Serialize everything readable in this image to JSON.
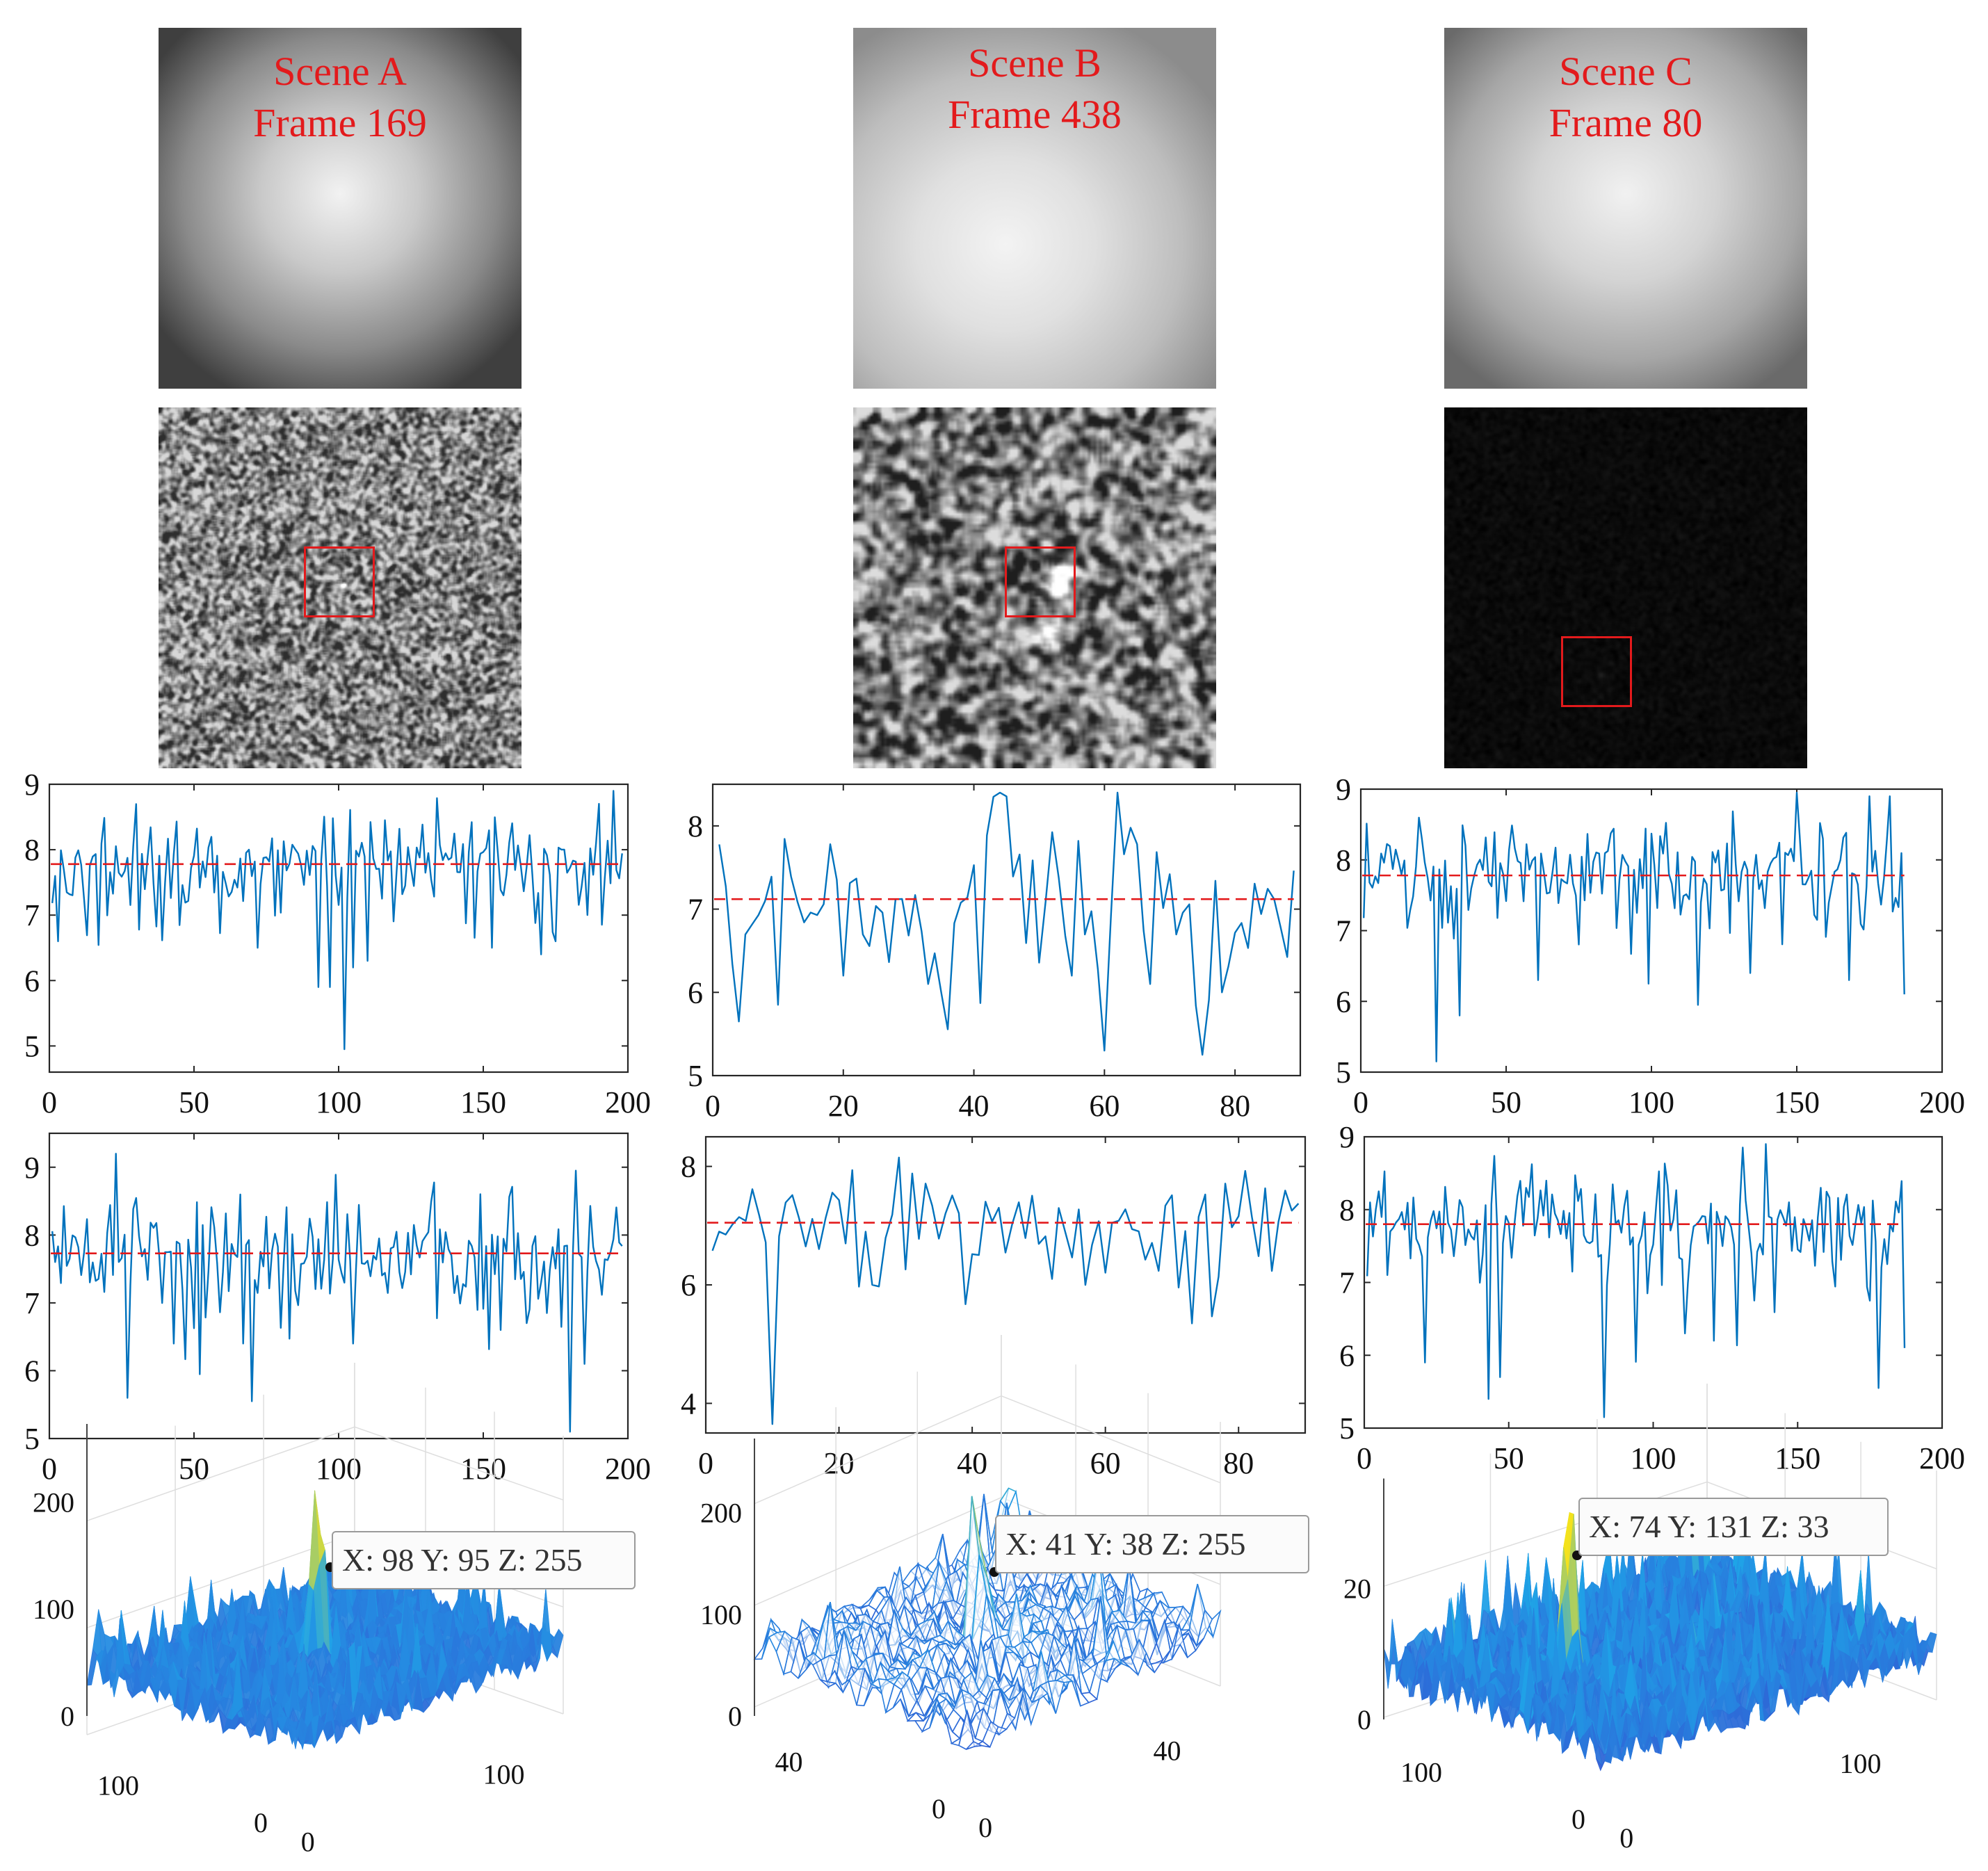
{
  "scenes": [
    {
      "id": "A",
      "title_line1": "Scene A",
      "title_line2": "Frame 169"
    },
    {
      "id": "B",
      "title_line1": "Scene B",
      "title_line2": "Frame 438"
    },
    {
      "id": "C",
      "title_line1": "Scene C",
      "title_line2": "Frame 80"
    }
  ],
  "colors": {
    "line": "#0072bd",
    "threshold": "#e31a1c",
    "title": "#e31a1c",
    "box": "#e31a1c",
    "surface_low": "#3b2fc7",
    "surface_mid": "#1fa5e8",
    "surface_high": "#f5e31b"
  },
  "chart_data": [
    {
      "id": "row1-A",
      "type": "line",
      "title": "",
      "xlabel": "",
      "ylabel": "",
      "xlim": [
        0,
        200
      ],
      "ylim": [
        4.6,
        9
      ],
      "xticks": [
        "0",
        "50",
        "100",
        "150",
        "200"
      ],
      "xtick_values": [
        0,
        50,
        100,
        150,
        200
      ],
      "yticks": [
        "5",
        "6",
        "7",
        "8",
        "9"
      ],
      "ytick_values": [
        5,
        6,
        7,
        8,
        9
      ],
      "n_points": 198,
      "mean": 7.8,
      "std": 0.45,
      "threshold": 7.78,
      "dips": [
        [
          2,
          6.6
        ],
        [
          71,
          6.5
        ],
        [
          92,
          5.9
        ],
        [
          96,
          5.9
        ],
        [
          101,
          4.95
        ],
        [
          104,
          6.2
        ],
        [
          109,
          6.3
        ],
        [
          152,
          6.5
        ],
        [
          174,
          6.6
        ]
      ]
    },
    {
      "id": "row1-B",
      "type": "line",
      "title": "",
      "xlabel": "",
      "ylabel": "",
      "xlim": [
        0,
        90
      ],
      "ylim": [
        5,
        8.5
      ],
      "xticks": [
        "0",
        "20",
        "40",
        "60",
        "80"
      ],
      "xtick_values": [
        0,
        20,
        40,
        60,
        80
      ],
      "yticks": [
        "5",
        "6",
        "7",
        "8"
      ],
      "ytick_values": [
        5,
        6,
        7,
        8
      ],
      "n_points": 89,
      "mean": 7.1,
      "std": 0.55,
      "threshold": 7.12,
      "dips": [
        [
          3,
          5.65
        ],
        [
          9,
          5.85
        ],
        [
          19,
          6.2
        ],
        [
          32,
          6.1
        ],
        [
          34,
          6.0
        ],
        [
          54,
          6.2
        ],
        [
          59,
          5.3
        ],
        [
          66,
          6.1
        ],
        [
          74,
          5.25
        ],
        [
          77,
          6.0
        ]
      ],
      "peaks": [
        [
          42,
          8.35
        ],
        [
          43,
          8.4
        ]
      ]
    },
    {
      "id": "row1-C",
      "type": "line",
      "title": "",
      "xlabel": "",
      "ylabel": "",
      "xlim": [
        0,
        200
      ],
      "ylim": [
        5,
        9
      ],
      "xticks": [
        "0",
        "50",
        "100",
        "150",
        "200"
      ],
      "xtick_values": [
        0,
        50,
        100,
        150,
        200
      ],
      "yticks": [
        "5",
        "6",
        "7",
        "8",
        "9"
      ],
      "ytick_values": [
        5,
        6,
        7,
        8,
        9
      ],
      "n_points": 187,
      "mean": 7.8,
      "std": 0.45,
      "threshold": 7.78,
      "dips": [
        [
          25,
          5.15
        ],
        [
          33,
          5.8
        ],
        [
          60,
          6.3
        ],
        [
          98,
          6.25
        ],
        [
          115,
          5.95
        ],
        [
          133,
          6.4
        ],
        [
          167,
          6.3
        ],
        [
          186,
          6.1
        ]
      ],
      "peaks": [
        [
          149,
          8.95
        ]
      ]
    },
    {
      "id": "row2-A",
      "type": "line",
      "title": "",
      "xlabel": "",
      "ylabel": "",
      "xlim": [
        0,
        200
      ],
      "ylim": [
        5,
        9.5
      ],
      "xticks": [
        "0",
        "50",
        "100",
        "150",
        "200"
      ],
      "xtick_values": [
        0,
        50,
        100,
        150,
        200
      ],
      "yticks": [
        "5",
        "6",
        "7",
        "8",
        "9"
      ],
      "ytick_values": [
        5,
        6,
        7,
        8,
        9
      ],
      "n_points": 198,
      "mean": 7.75,
      "std": 0.5,
      "threshold": 7.73,
      "dips": [
        [
          26,
          5.6
        ],
        [
          42,
          6.4
        ],
        [
          66,
          6.4
        ],
        [
          104,
          6.4
        ],
        [
          155,
          6.6
        ],
        [
          179,
          5.1
        ],
        [
          184,
          6.1
        ]
      ],
      "peaks": [
        [
          22,
          9.2
        ],
        [
          181,
          8.95
        ]
      ]
    },
    {
      "id": "row2-B",
      "type": "line",
      "title": "",
      "xlabel": "",
      "ylabel": "",
      "xlim": [
        0,
        90
      ],
      "ylim": [
        3.5,
        8.5
      ],
      "xticks": [
        "0",
        "20",
        "40",
        "60",
        "80"
      ],
      "xtick_values": [
        0,
        20,
        40,
        60,
        80
      ],
      "yticks": [
        "4",
        "6",
        "8"
      ],
      "ytick_values": [
        4,
        6,
        8
      ],
      "n_points": 89,
      "mean": 7.0,
      "std": 0.45,
      "threshold": 7.05,
      "dips": [
        [
          9,
          3.65
        ],
        [
          24,
          6.0
        ],
        [
          51,
          6.1
        ],
        [
          56,
          6.0
        ],
        [
          72,
          5.35
        ]
      ],
      "peaks": [
        [
          28,
          8.15
        ]
      ]
    },
    {
      "id": "row2-C",
      "type": "line",
      "title": "",
      "xlabel": "",
      "ylabel": "",
      "xlim": [
        0,
        200
      ],
      "ylim": [
        5,
        9
      ],
      "xticks": [
        "0",
        "50",
        "100",
        "150",
        "200"
      ],
      "xtick_values": [
        0,
        50,
        100,
        150,
        200
      ],
      "yticks": [
        "5",
        "6",
        "7",
        "8",
        "9"
      ],
      "ytick_values": [
        5,
        6,
        7,
        8,
        9
      ],
      "n_points": 187,
      "mean": 7.8,
      "std": 0.45,
      "threshold": 7.8,
      "dips": [
        [
          20,
          5.9
        ],
        [
          42,
          5.4
        ],
        [
          46,
          5.7
        ],
        [
          82,
          5.15
        ],
        [
          110,
          6.3
        ],
        [
          120,
          6.2
        ],
        [
          177,
          5.55
        ],
        [
          186,
          6.1
        ]
      ],
      "peaks": [
        [
          138,
          8.9
        ]
      ]
    },
    {
      "id": "surf-A",
      "type": "surface",
      "zticks": [
        "0",
        "100",
        "200"
      ],
      "ztick_values": [
        0,
        100,
        200
      ],
      "zmax": 260,
      "xticks": [
        "0",
        "100"
      ],
      "yticks": [
        "0",
        "100"
      ],
      "peak": {
        "x": 98,
        "y": 95,
        "z": 255
      },
      "base_level": 80,
      "tooltip": "X: 98 Y: 95 Z: 255"
    },
    {
      "id": "surf-B",
      "type": "surface",
      "zticks": [
        "0",
        "100",
        "200"
      ],
      "ztick_values": [
        0,
        100,
        200
      ],
      "zmax": 260,
      "xticks": [
        "0",
        "40"
      ],
      "yticks": [
        "0",
        "40"
      ],
      "peak": {
        "x": 41,
        "y": 38,
        "z": 255
      },
      "base_level": 70,
      "tooltip": "X: 41 Y: 38 Z: 255"
    },
    {
      "id": "surf-C",
      "type": "surface",
      "zticks": [
        "0",
        "20"
      ],
      "ztick_values": [
        0,
        20
      ],
      "zmax": 35,
      "xticks": [
        "0",
        "100"
      ],
      "yticks": [
        "0",
        "100"
      ],
      "peak": {
        "x": 74,
        "y": 131,
        "z": 33
      },
      "base_level": 8,
      "tooltip": "X: 74 Y: 131 Z: 33"
    }
  ]
}
